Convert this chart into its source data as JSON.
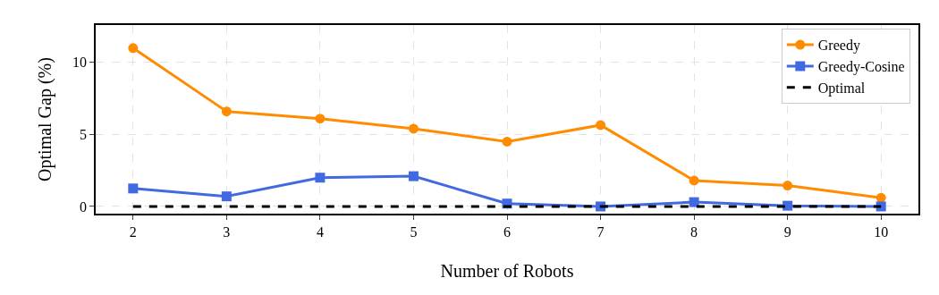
{
  "chart_data": {
    "type": "line",
    "xlabel": "Number of Robots",
    "ylabel": "Optimal Gap (%)",
    "x": [
      2,
      3,
      4,
      5,
      6,
      7,
      8,
      9,
      10
    ],
    "series": [
      {
        "name": "Greedy",
        "color": "#ff8c00",
        "marker": "circle",
        "line_style": "solid",
        "values": [
          11.0,
          6.6,
          6.1,
          5.4,
          4.5,
          5.65,
          1.8,
          1.45,
          0.6
        ]
      },
      {
        "name": "Greedy-Cosine",
        "color": "#4169e1",
        "marker": "square",
        "line_style": "solid",
        "values": [
          1.25,
          0.7,
          2.0,
          2.1,
          0.2,
          0.0,
          0.3,
          0.05,
          0.0
        ]
      },
      {
        "name": "Optimal",
        "color": "#000000",
        "marker": "none",
        "line_style": "dashed",
        "values": [
          0,
          0,
          0,
          0,
          0,
          0,
          0,
          0,
          0
        ]
      }
    ],
    "xlim": [
      1.6,
      10.4
    ],
    "xticks": [
      2,
      3,
      4,
      5,
      6,
      7,
      8,
      9,
      10
    ],
    "ylim": [
      -0.5,
      12.6
    ],
    "yticks": [
      0,
      5,
      10
    ],
    "grid": true,
    "legend": "top right"
  }
}
